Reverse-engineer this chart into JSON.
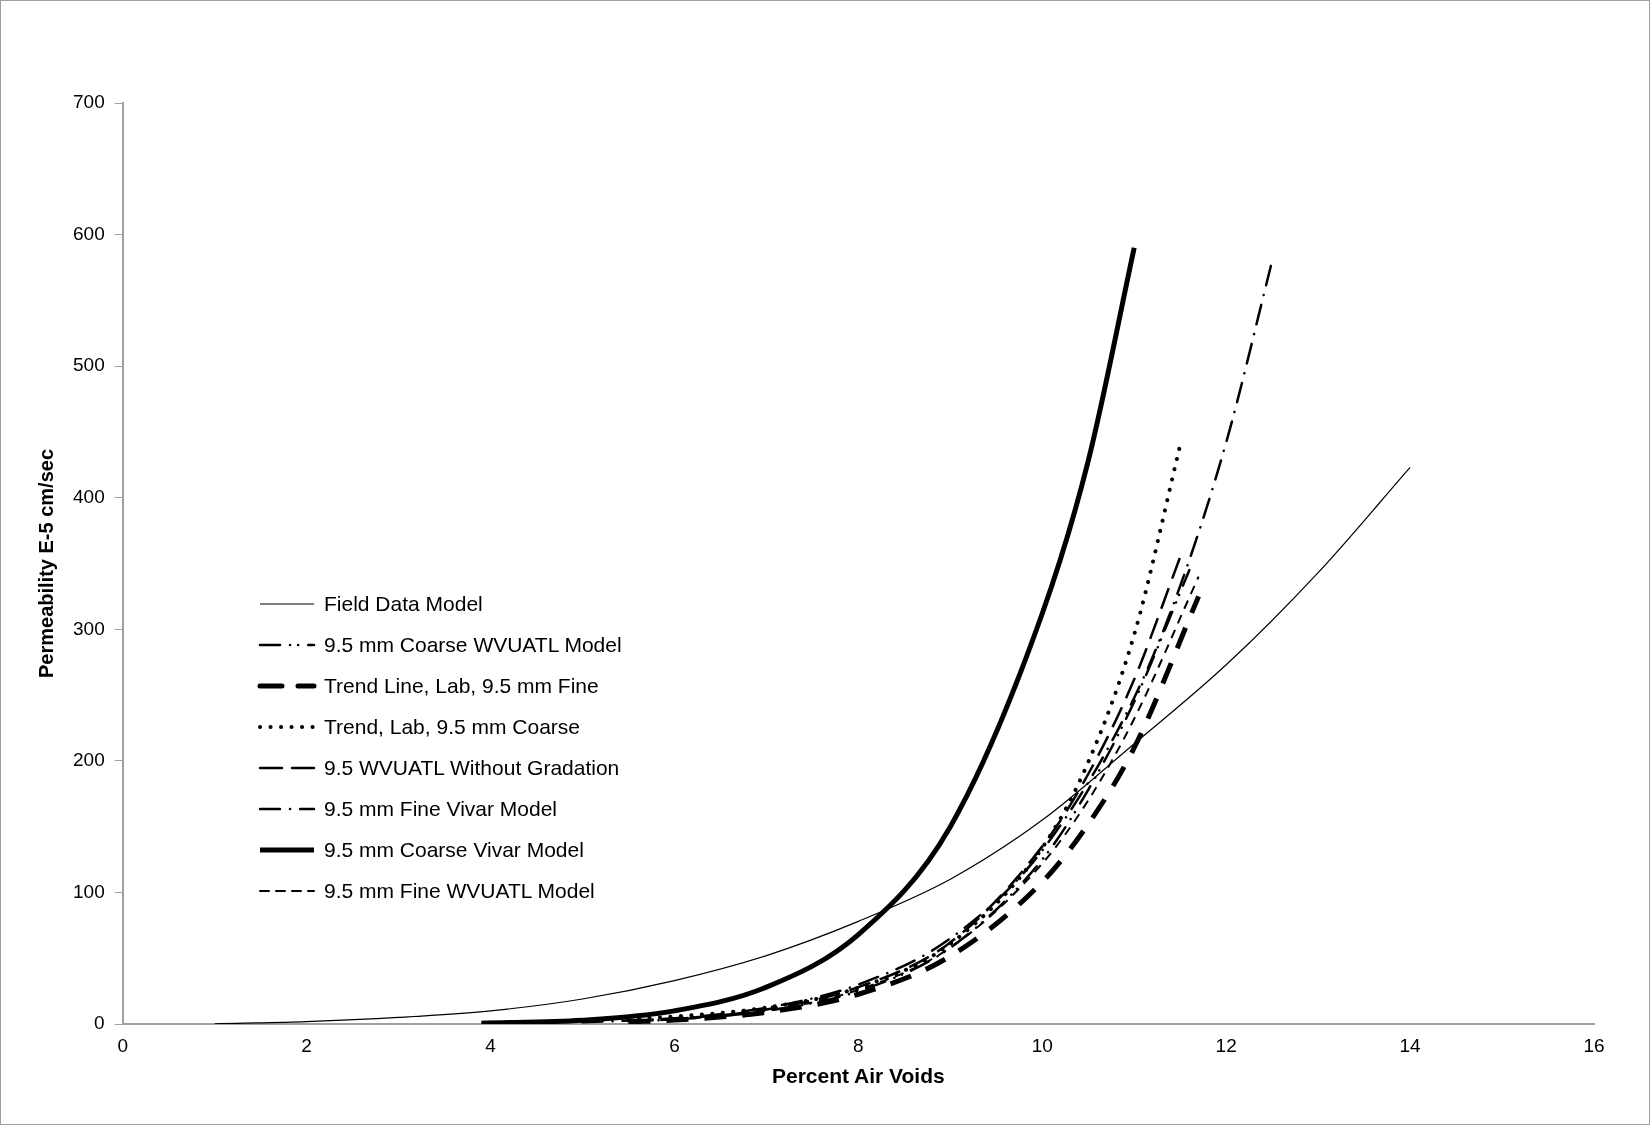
{
  "chart_data": {
    "type": "line",
    "xlabel": "Percent Air Voids",
    "ylabel": "Permeability E-5 cm/sec",
    "xlim": [
      0,
      16
    ],
    "xticks": [
      0,
      2,
      4,
      6,
      8,
      10,
      12,
      14,
      16
    ],
    "ylim": [
      0,
      700
    ],
    "yticks": [
      0,
      100,
      200,
      300,
      400,
      500,
      600,
      700
    ],
    "grid": false,
    "legend": "left",
    "marker": "none",
    "series": [
      {
        "name": "Field Data Model",
        "color": "#000000",
        "line_style": "solid",
        "x": [
          1,
          2,
          3,
          4,
          5,
          6,
          7,
          8,
          9,
          10,
          11,
          12,
          13,
          14
        ],
        "values": [
          0.2,
          1.8,
          5,
          10,
          19,
          33,
          52,
          78,
          110,
          155,
          213,
          273,
          343,
          423
        ]
      },
      {
        "name": "9.5 mm Coarse WVUATL Model",
        "color": "#000000",
        "line_style": "dashdotdot",
        "x": [
          5.5,
          6,
          7,
          8,
          9,
          10,
          10.5,
          11,
          11.6
        ],
        "values": [
          2,
          3.5,
          10,
          25,
          58,
          125,
          178,
          245,
          345
        ]
      },
      {
        "name": "Trend Line, Lab, 9.5 mm Fine",
        "color": "#000000",
        "line_style": "dashed",
        "x": [
          5.5,
          6,
          7,
          8,
          9,
          10,
          10.5,
          11,
          11.7
        ],
        "values": [
          1.6,
          3,
          8.9,
          22.6,
          51.6,
          108,
          152,
          210,
          325
        ]
      },
      {
        "name": "Trend, Lab, 9.5 mm Coarse",
        "color": "#000000",
        "line_style": "dotted",
        "x": [
          5.5,
          6,
          7,
          8,
          9,
          10,
          10.5,
          11,
          11.5
        ],
        "values": [
          3.8,
          5.7,
          12.5,
          27.6,
          61,
          134,
          199,
          296,
          440
        ]
      },
      {
        "name": "9.5 WVUATL Without Gradation",
        "color": "#000000",
        "line_style": "dashed",
        "x": [
          5.5,
          6,
          7,
          8,
          9,
          10,
          10.5,
          11,
          11.5
        ],
        "values": [
          2.5,
          4,
          11,
          28,
          62,
          135,
          190,
          262,
          355
        ]
      },
      {
        "name": "9.5 mm Fine Vivar Model",
        "color": "#000000",
        "line_style": "dashdot",
        "x": [
          5,
          6,
          7,
          8,
          9,
          10,
          11,
          11.5,
          12,
          12.5
        ],
        "values": [
          1.3,
          4.4,
          12.3,
          30,
          65,
          132,
          248,
          333,
          442,
          580
        ]
      },
      {
        "name": "9.5 mm Coarse Vivar Model",
        "color": "#000000",
        "line_style": "solid",
        "x": [
          3.9,
          5,
          6,
          7,
          8,
          9,
          10,
          10.5,
          11
        ],
        "values": [
          0.6,
          2.9,
          10,
          28,
          68,
          150,
          312,
          428,
          590
        ]
      },
      {
        "name": "9.5 mm Fine WVUATL Model",
        "color": "#000000",
        "line_style": "dashed",
        "x": [
          5.5,
          6,
          7,
          8,
          9,
          10,
          10.5,
          11,
          11.7
        ],
        "values": [
          2,
          3.5,
          10,
          26,
          58,
          122,
          170,
          232,
          340
        ]
      }
    ]
  }
}
